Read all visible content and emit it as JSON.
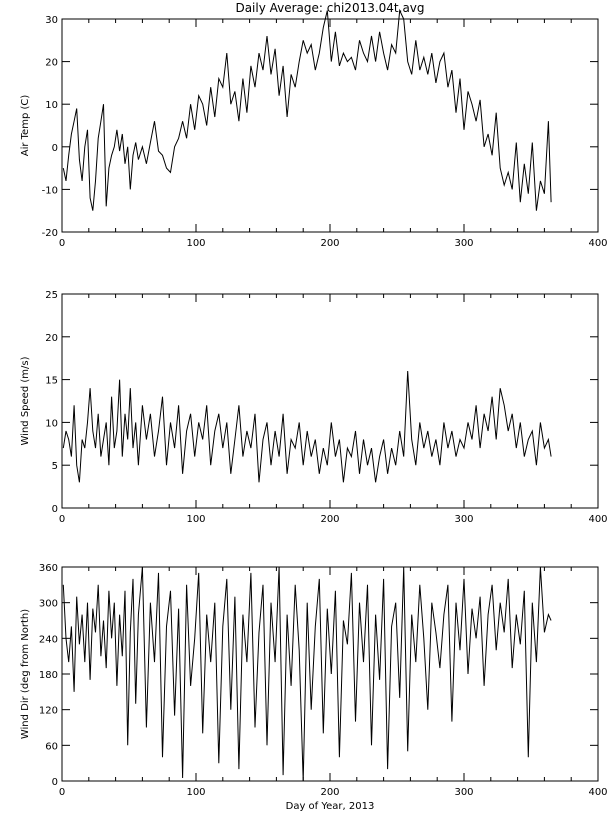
{
  "title": "Daily Average: chi2013.04t.avg",
  "chart_data": [
    {
      "type": "line",
      "ylabel": "Air Temp (C)",
      "xlabel": "",
      "xlim": [
        0,
        400
      ],
      "ylim": [
        -20,
        30
      ],
      "xticks": [
        "0",
        "100",
        "200",
        "300",
        "400"
      ],
      "yticks": [
        "-20",
        "-10",
        "0",
        "10",
        "20",
        "30"
      ],
      "series": [
        {
          "x": [
            1,
            3,
            5,
            7,
            9,
            11,
            13,
            15,
            17,
            19,
            21,
            23,
            25,
            27,
            29,
            31,
            33,
            35,
            37,
            39,
            41,
            43,
            45,
            47,
            49,
            51,
            53,
            55,
            57,
            60,
            63,
            66,
            69,
            72,
            75,
            78,
            81,
            84,
            87,
            90,
            93,
            96,
            99,
            102,
            105,
            108,
            111,
            114,
            117,
            120,
            123,
            126,
            129,
            132,
            135,
            138,
            141,
            144,
            147,
            150,
            153,
            156,
            159,
            162,
            165,
            168,
            171,
            174,
            177,
            180,
            183,
            186,
            189,
            192,
            195,
            198,
            201,
            204,
            207,
            210,
            213,
            216,
            219,
            222,
            225,
            228,
            231,
            234,
            237,
            240,
            243,
            246,
            249,
            252,
            255,
            258,
            261,
            264,
            267,
            270,
            273,
            276,
            279,
            282,
            285,
            288,
            291,
            294,
            297,
            300,
            303,
            306,
            309,
            312,
            315,
            318,
            321,
            324,
            327,
            330,
            333,
            336,
            339,
            342,
            345,
            348,
            351,
            354,
            357,
            360,
            363,
            365
          ],
          "y": [
            -5,
            -8,
            -2,
            3,
            6,
            9,
            -3,
            -8,
            0,
            4,
            -12,
            -15,
            -8,
            2,
            6,
            10,
            -14,
            -5,
            -2,
            0,
            4,
            -1,
            3,
            -4,
            0,
            -10,
            -2,
            1,
            -3,
            0,
            -4,
            1,
            6,
            -1,
            -2,
            -5,
            -6,
            0,
            2,
            6,
            2,
            10,
            4,
            12,
            10,
            5,
            14,
            7,
            16,
            14,
            22,
            10,
            13,
            6,
            16,
            8,
            19,
            14,
            22,
            18,
            26,
            17,
            23,
            12,
            19,
            7,
            17,
            14,
            20,
            25,
            22,
            24,
            18,
            22,
            28,
            32,
            20,
            27,
            19,
            22,
            20,
            21,
            18,
            25,
            22,
            20,
            26,
            20,
            27,
            22,
            18,
            24,
            22,
            32,
            30,
            20,
            17,
            25,
            18,
            21,
            17,
            22,
            15,
            20,
            22,
            14,
            18,
            8,
            16,
            4,
            13,
            10,
            6,
            11,
            0,
            3,
            -2,
            8,
            -5,
            -9,
            -6,
            -10,
            1,
            -13,
            -4,
            -11,
            1,
            -15,
            -8,
            -11,
            6,
            -13
          ]
        }
      ]
    },
    {
      "type": "line",
      "ylabel": "Wind Speed (m/s)",
      "xlabel": "",
      "xlim": [
        0,
        400
      ],
      "ylim": [
        0,
        25
      ],
      "xticks": [
        "0",
        "100",
        "200",
        "300",
        "400"
      ],
      "yticks": [
        "0",
        "5",
        "10",
        "15",
        "20",
        "25"
      ],
      "series": [
        {
          "x": [
            1,
            3,
            5,
            7,
            9,
            11,
            13,
            15,
            17,
            19,
            21,
            23,
            25,
            27,
            29,
            31,
            33,
            35,
            37,
            39,
            41,
            43,
            45,
            47,
            49,
            51,
            53,
            55,
            57,
            60,
            63,
            66,
            69,
            72,
            75,
            78,
            81,
            84,
            87,
            90,
            93,
            96,
            99,
            102,
            105,
            108,
            111,
            114,
            117,
            120,
            123,
            126,
            129,
            132,
            135,
            138,
            141,
            144,
            147,
            150,
            153,
            156,
            159,
            162,
            165,
            168,
            171,
            174,
            177,
            180,
            183,
            186,
            189,
            192,
            195,
            198,
            201,
            204,
            207,
            210,
            213,
            216,
            219,
            222,
            225,
            228,
            231,
            234,
            237,
            240,
            243,
            246,
            249,
            252,
            255,
            258,
            261,
            264,
            267,
            270,
            273,
            276,
            279,
            282,
            285,
            288,
            291,
            294,
            297,
            300,
            303,
            306,
            309,
            312,
            315,
            318,
            321,
            324,
            327,
            330,
            333,
            336,
            339,
            342,
            345,
            348,
            351,
            354,
            357,
            360,
            363,
            365
          ],
          "y": [
            7,
            9,
            8,
            6,
            12,
            5,
            3,
            8,
            7,
            10,
            14,
            9,
            7,
            11,
            6,
            8,
            10,
            5,
            13,
            7,
            9,
            15,
            6,
            11,
            8,
            14,
            7,
            10,
            5,
            12,
            8,
            11,
            6,
            9,
            13,
            5,
            10,
            7,
            12,
            4,
            9,
            11,
            6,
            10,
            8,
            12,
            5,
            9,
            11,
            7,
            10,
            4,
            8,
            12,
            6,
            9,
            7,
            11,
            3,
            8,
            10,
            5,
            9,
            6,
            11,
            4,
            8,
            7,
            10,
            5,
            9,
            6,
            8,
            4,
            7,
            5,
            10,
            6,
            8,
            3,
            7,
            6,
            9,
            4,
            8,
            5,
            7,
            3,
            6,
            8,
            4,
            7,
            5,
            9,
            6,
            16,
            8,
            5,
            10,
            7,
            9,
            6,
            8,
            5,
            10,
            7,
            9,
            6,
            8,
            7,
            10,
            8,
            12,
            7,
            11,
            9,
            13,
            8,
            14,
            12,
            9,
            11,
            7,
            10,
            6,
            8,
            9,
            5,
            10,
            7,
            8,
            6
          ]
        }
      ]
    },
    {
      "type": "line",
      "ylabel": "Wind Dir (deg from North)",
      "xlabel": "Day of Year, 2013",
      "xlim": [
        0,
        400
      ],
      "ylim": [
        0,
        360
      ],
      "xticks": [
        "0",
        "100",
        "200",
        "300",
        "400"
      ],
      "yticks": [
        "0",
        "60",
        "120",
        "180",
        "240",
        "300",
        "360"
      ],
      "series": [
        {
          "x": [
            1,
            3,
            5,
            7,
            9,
            11,
            13,
            15,
            17,
            19,
            21,
            23,
            25,
            27,
            29,
            31,
            33,
            35,
            37,
            39,
            41,
            43,
            45,
            47,
            49,
            51,
            53,
            55,
            57,
            60,
            63,
            66,
            69,
            72,
            75,
            78,
            81,
            84,
            87,
            90,
            93,
            96,
            99,
            102,
            105,
            108,
            111,
            114,
            117,
            120,
            123,
            126,
            129,
            132,
            135,
            138,
            141,
            144,
            147,
            150,
            153,
            156,
            159,
            162,
            165,
            168,
            171,
            174,
            177,
            180,
            183,
            186,
            189,
            192,
            195,
            198,
            201,
            204,
            207,
            210,
            213,
            216,
            219,
            222,
            225,
            228,
            231,
            234,
            237,
            240,
            243,
            246,
            249,
            252,
            255,
            258,
            261,
            264,
            267,
            270,
            273,
            276,
            279,
            282,
            285,
            288,
            291,
            294,
            297,
            300,
            303,
            306,
            309,
            312,
            315,
            318,
            321,
            324,
            327,
            330,
            333,
            336,
            339,
            342,
            345,
            348,
            351,
            354,
            357,
            360,
            363,
            365
          ],
          "y": [
            330,
            240,
            200,
            260,
            150,
            310,
            230,
            280,
            200,
            300,
            170,
            290,
            250,
            330,
            210,
            270,
            190,
            320,
            240,
            300,
            160,
            280,
            210,
            320,
            60,
            250,
            340,
            130,
            280,
            360,
            90,
            300,
            200,
            350,
            40,
            260,
            320,
            110,
            290,
            5,
            330,
            160,
            240,
            350,
            80,
            280,
            200,
            300,
            30,
            260,
            340,
            120,
            310,
            20,
            280,
            200,
            350,
            90,
            250,
            330,
            60,
            300,
            200,
            360,
            10,
            280,
            160,
            330,
            220,
            0,
            300,
            120,
            260,
            340,
            80,
            290,
            180,
            320,
            40,
            270,
            230,
            350,
            100,
            300,
            200,
            330,
            60,
            280,
            170,
            340,
            20,
            260,
            300,
            140,
            360,
            50,
            280,
            200,
            330,
            240,
            120,
            300,
            250,
            190,
            280,
            330,
            100,
            300,
            220,
            340,
            180,
            290,
            240,
            310,
            160,
            280,
            330,
            220,
            300,
            250,
            340,
            190,
            280,
            230,
            320,
            40,
            300,
            200,
            360,
            250,
            280,
            270
          ]
        }
      ]
    }
  ]
}
